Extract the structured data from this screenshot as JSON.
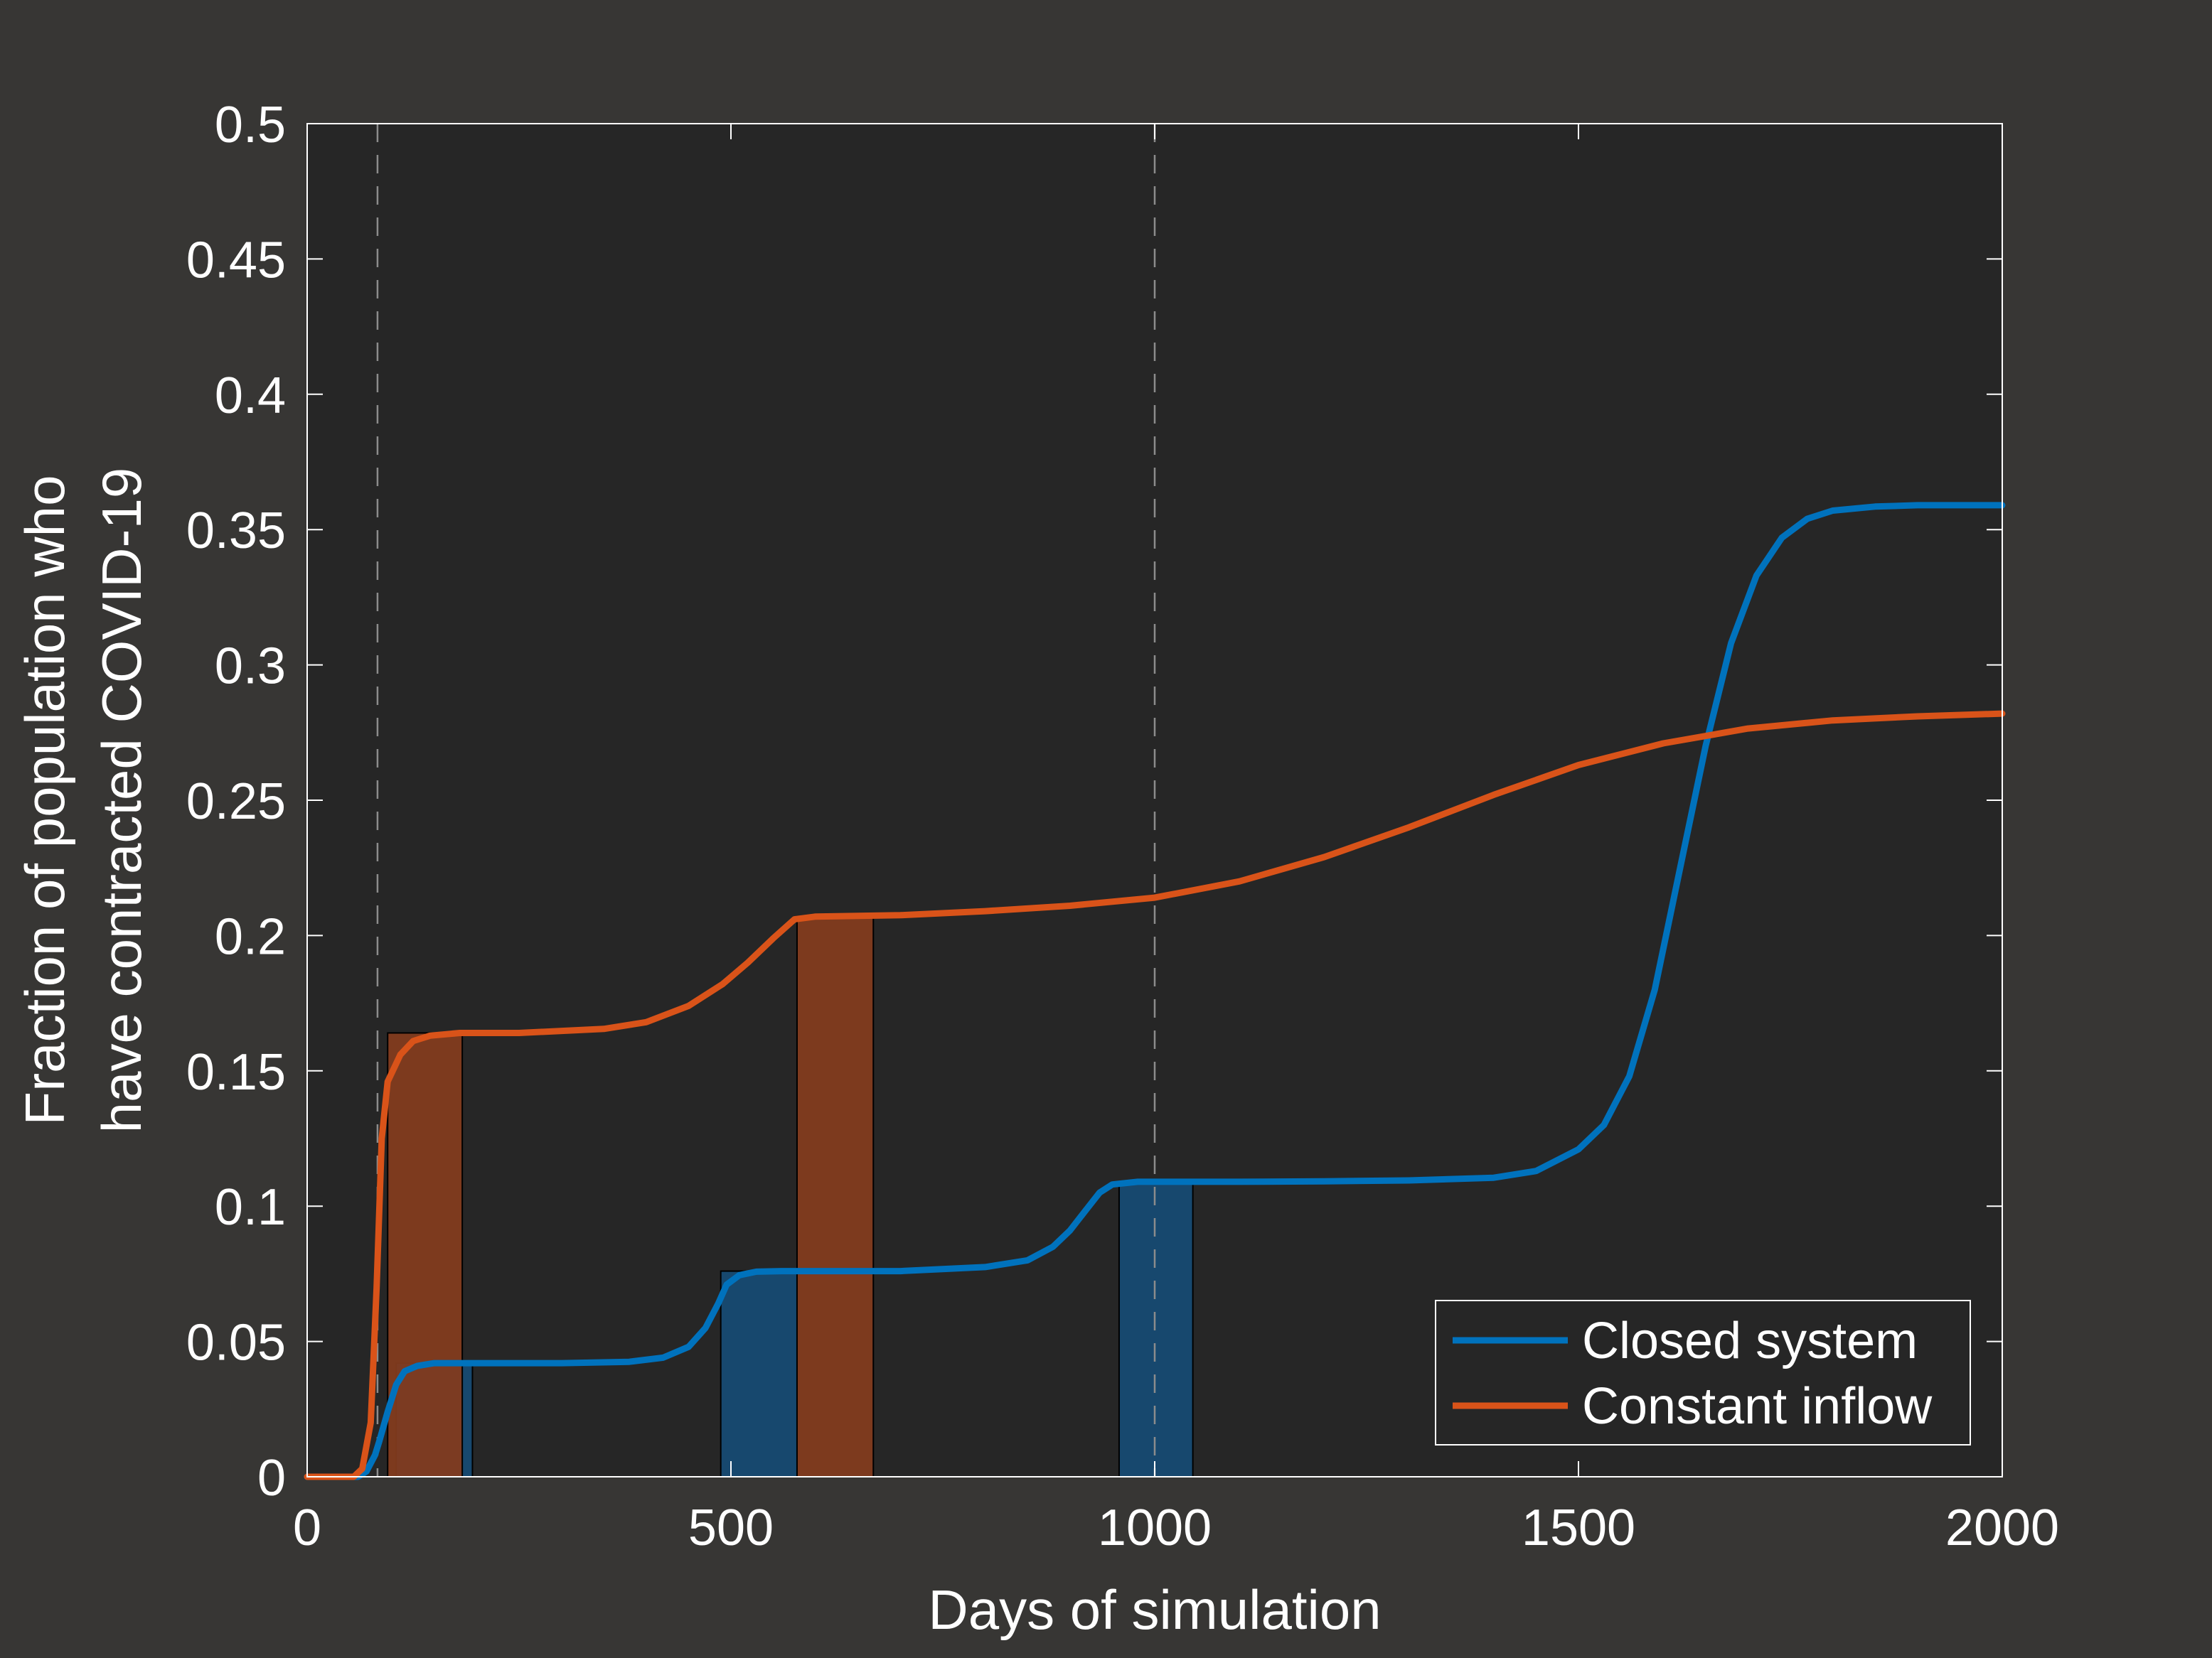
{
  "colors": {
    "figure_background": "#373634",
    "axes_background": "#262626",
    "axes_foreground": "#ffffff",
    "closed_system": "#0072bd",
    "constant_inflow": "#d95319",
    "closed_system_bar": "#164a72",
    "constant_inflow_bar": "#823b1e",
    "guide_line": "#8c8c8c"
  },
  "chart_data": {
    "type": "line",
    "xlabel": "Days of simulation",
    "ylabel_lines": [
      "Fraction of population who",
      "have contracted COVID-19"
    ],
    "xlim": [
      0,
      2000
    ],
    "ylim": [
      0,
      0.5
    ],
    "x_ticks": [
      0,
      500,
      1000,
      1500,
      2000
    ],
    "x_tick_labels": [
      "0",
      "500",
      "1000",
      "1500",
      "2000"
    ],
    "y_ticks": [
      0,
      0.05,
      0.1,
      0.15,
      0.2,
      0.25,
      0.3,
      0.35,
      0.4,
      0.45,
      0.5
    ],
    "y_tick_labels": [
      "0",
      "0.05",
      "0.1",
      "0.15",
      "0.2",
      "0.25",
      "0.3",
      "0.35",
      "0.4",
      "0.45",
      "0.5"
    ],
    "grid": false,
    "legend_position": "bottom-right",
    "vertical_guides": [
      83,
      1000
    ],
    "series": [
      {
        "name": "Closed system",
        "color_key": "closed_system",
        "points": [
          [
            0,
            0
          ],
          [
            60,
            0
          ],
          [
            70,
            0.002
          ],
          [
            80,
            0.008
          ],
          [
            85,
            0.013
          ],
          [
            95,
            0.024
          ],
          [
            105,
            0.034
          ],
          [
            115,
            0.039
          ],
          [
            130,
            0.041
          ],
          [
            150,
            0.042
          ],
          [
            200,
            0.042
          ],
          [
            300,
            0.042
          ],
          [
            380,
            0.0425
          ],
          [
            420,
            0.044
          ],
          [
            450,
            0.048
          ],
          [
            470,
            0.055
          ],
          [
            485,
            0.064
          ],
          [
            495,
            0.071
          ],
          [
            510,
            0.0745
          ],
          [
            530,
            0.0758
          ],
          [
            560,
            0.076
          ],
          [
            600,
            0.076
          ],
          [
            700,
            0.076
          ],
          [
            800,
            0.0775
          ],
          [
            850,
            0.08
          ],
          [
            880,
            0.085
          ],
          [
            900,
            0.091
          ],
          [
            920,
            0.099
          ],
          [
            935,
            0.105
          ],
          [
            950,
            0.108
          ],
          [
            980,
            0.109
          ],
          [
            1000,
            0.109
          ],
          [
            1100,
            0.109
          ],
          [
            1200,
            0.1092
          ],
          [
            1300,
            0.1095
          ],
          [
            1400,
            0.1105
          ],
          [
            1450,
            0.113
          ],
          [
            1500,
            0.121
          ],
          [
            1530,
            0.13
          ],
          [
            1560,
            0.148
          ],
          [
            1590,
            0.18
          ],
          [
            1620,
            0.225
          ],
          [
            1650,
            0.27
          ],
          [
            1680,
            0.308
          ],
          [
            1710,
            0.333
          ],
          [
            1740,
            0.347
          ],
          [
            1770,
            0.354
          ],
          [
            1800,
            0.357
          ],
          [
            1850,
            0.3585
          ],
          [
            1900,
            0.359
          ],
          [
            2000,
            0.359
          ]
        ]
      },
      {
        "name": "Constant inflow",
        "color_key": "constant_inflow",
        "points": [
          [
            0,
            0
          ],
          [
            55,
            0
          ],
          [
            65,
            0.003
          ],
          [
            75,
            0.02
          ],
          [
            82,
            0.07
          ],
          [
            88,
            0.125
          ],
          [
            95,
            0.146
          ],
          [
            110,
            0.156
          ],
          [
            125,
            0.161
          ],
          [
            145,
            0.163
          ],
          [
            180,
            0.164
          ],
          [
            250,
            0.164
          ],
          [
            350,
            0.1655
          ],
          [
            400,
            0.168
          ],
          [
            450,
            0.174
          ],
          [
            490,
            0.182
          ],
          [
            520,
            0.19
          ],
          [
            550,
            0.199
          ],
          [
            575,
            0.206
          ],
          [
            600,
            0.207
          ],
          [
            700,
            0.2075
          ],
          [
            800,
            0.209
          ],
          [
            900,
            0.211
          ],
          [
            1000,
            0.214
          ],
          [
            1100,
            0.22
          ],
          [
            1200,
            0.229
          ],
          [
            1300,
            0.24
          ],
          [
            1400,
            0.252
          ],
          [
            1500,
            0.263
          ],
          [
            1600,
            0.271
          ],
          [
            1700,
            0.2765
          ],
          [
            1800,
            0.2795
          ],
          [
            1900,
            0.281
          ],
          [
            2000,
            0.282
          ]
        ]
      }
    ],
    "bars": [
      {
        "series": "Closed system",
        "x0": 105,
        "x1": 195,
        "value": 0.042
      },
      {
        "series": "Closed system",
        "x0": 488,
        "x1": 578,
        "value": 0.076
      },
      {
        "series": "Closed system",
        "x0": 958,
        "x1": 1045,
        "value": 0.109
      },
      {
        "series": "Constant inflow",
        "x0": 95,
        "x1": 183,
        "value": 0.164
      },
      {
        "series": "Constant inflow",
        "x0": 578,
        "x1": 668,
        "value": 0.207
      }
    ]
  }
}
